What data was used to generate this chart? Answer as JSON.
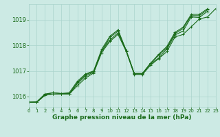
{
  "background_color": "#cceae4",
  "grid_color": "#aad4cc",
  "line_color": "#1a6b1a",
  "text_color": "#1a6b1a",
  "xlabel": "Graphe pression niveau de la mer (hPa)",
  "xlim": [
    0,
    23
  ],
  "ylim": [
    1015.6,
    1019.6
  ],
  "yticks": [
    1016,
    1017,
    1018,
    1019
  ],
  "xticks": [
    0,
    1,
    2,
    3,
    4,
    5,
    6,
    7,
    8,
    9,
    10,
    11,
    12,
    13,
    14,
    15,
    16,
    17,
    18,
    19,
    20,
    21,
    22,
    23
  ],
  "series": [
    [
      1015.78,
      1015.78,
      1016.05,
      1016.1,
      1016.1,
      1016.1,
      1016.5,
      1016.8,
      1016.95,
      1017.78,
      1018.2,
      1018.48,
      1017.78,
      1016.88,
      1016.88,
      1017.28,
      1017.5,
      1017.85,
      1018.4,
      1018.55,
      1019.1,
      1019.08,
      1019.32,
      null
    ],
    [
      1015.78,
      1015.78,
      1016.05,
      1016.1,
      1016.1,
      1016.1,
      1016.42,
      1016.72,
      1016.92,
      1017.72,
      1018.15,
      1018.42,
      1017.76,
      1016.86,
      1016.86,
      1017.22,
      1017.48,
      1017.75,
      1018.32,
      1018.42,
      1018.72,
      1019.02,
      1019.1,
      1019.42
    ],
    [
      1015.78,
      1015.78,
      1016.08,
      1016.15,
      1016.12,
      1016.12,
      1016.55,
      1016.85,
      1016.98,
      1017.78,
      1018.3,
      1018.55,
      1017.8,
      1016.9,
      1016.9,
      1017.3,
      1017.6,
      1017.9,
      1018.45,
      1018.65,
      1019.15,
      1019.15,
      1019.38,
      null
    ],
    [
      1015.78,
      1015.8,
      1016.1,
      1016.15,
      1016.12,
      1016.15,
      1016.6,
      1016.88,
      1017.0,
      1017.85,
      1018.35,
      1018.6,
      1017.8,
      1016.9,
      1016.9,
      1017.3,
      1017.65,
      1017.95,
      1018.5,
      1018.7,
      1019.2,
      1019.2,
      1019.42,
      null
    ]
  ],
  "marker": "+",
  "markersize": 3,
  "linewidth": 0.8,
  "xlabel_fontsize": 6.5,
  "ytick_fontsize": 6,
  "xtick_fontsize": 5
}
